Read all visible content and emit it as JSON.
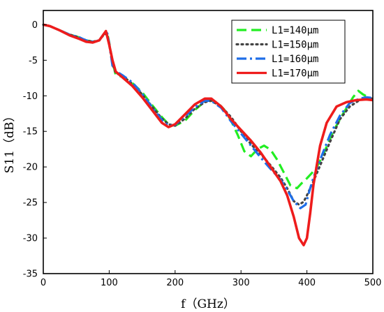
{
  "chart_data": {
    "type": "line",
    "xlabel": "f（GHz）",
    "ylabel": "S11（dB）",
    "xlim": [
      0,
      500
    ],
    "ylim": [
      -35,
      2
    ],
    "xticks": [
      0,
      100,
      200,
      300,
      400,
      500
    ],
    "yticks": [
      0,
      -5,
      -10,
      -15,
      -20,
      -25,
      -30,
      -35
    ],
    "grid": false,
    "legend_position": "top-right",
    "series": [
      {
        "name": "L1=140μm",
        "color": "#22ee22",
        "style": "dashed",
        "x": [
          0,
          10,
          25,
          40,
          55,
          65,
          75,
          85,
          92,
          97,
          100,
          105,
          110,
          120,
          135,
          150,
          165,
          180,
          190,
          200,
          215,
          230,
          245,
          255,
          265,
          275,
          285,
          295,
          305,
          315,
          325,
          335,
          345,
          355,
          365,
          375,
          385,
          392,
          400,
          408,
          415,
          425,
          440,
          455,
          470,
          478,
          485,
          495,
          500
        ],
        "y": [
          0,
          -0.2,
          -0.8,
          -1.4,
          -1.8,
          -2.2,
          -2.4,
          -2.2,
          -1.3,
          -1.2,
          -2.5,
          -5.2,
          -7.1,
          -7.3,
          -8.2,
          -9.5,
          -11.3,
          -13.0,
          -14.0,
          -14.2,
          -13.5,
          -12.0,
          -10.8,
          -10.6,
          -11.0,
          -12.0,
          -13.5,
          -15.5,
          -17.8,
          -18.5,
          -17.5,
          -17.0,
          -17.6,
          -19.0,
          -20.8,
          -22.6,
          -23.0,
          -22.3,
          -21.6,
          -20.8,
          -20.0,
          -18.2,
          -15.0,
          -12.5,
          -10.2,
          -9.3,
          -9.8,
          -10.3,
          -10.5
        ]
      },
      {
        "name": "L1=150μm",
        "color": "#444444",
        "style": "dotted",
        "x": [
          0,
          10,
          25,
          40,
          55,
          65,
          75,
          85,
          92,
          97,
          100,
          105,
          110,
          120,
          135,
          150,
          165,
          180,
          190,
          200,
          215,
          230,
          245,
          255,
          270,
          285,
          300,
          315,
          330,
          345,
          360,
          370,
          380,
          388,
          395,
          400,
          405,
          410,
          420,
          435,
          450,
          465,
          480,
          490,
          500
        ],
        "y": [
          0,
          -0.2,
          -0.8,
          -1.4,
          -1.8,
          -2.2,
          -2.4,
          -2.2,
          -1.4,
          -1.3,
          -2.8,
          -5.5,
          -6.8,
          -7.2,
          -8.3,
          -9.8,
          -11.5,
          -13.2,
          -14.0,
          -14.2,
          -13.2,
          -11.8,
          -10.9,
          -10.7,
          -11.5,
          -13.0,
          -15.0,
          -16.8,
          -18.2,
          -19.8,
          -21.5,
          -23.0,
          -24.8,
          -25.3,
          -24.9,
          -24.0,
          -23.0,
          -22.0,
          -19.8,
          -16.5,
          -13.3,
          -11.5,
          -10.6,
          -10.3,
          -10.4
        ]
      },
      {
        "name": "L1=160μm",
        "color": "#1f6ee8",
        "style": "dashdot",
        "x": [
          0,
          10,
          25,
          40,
          55,
          65,
          75,
          85,
          92,
          97,
          100,
          105,
          110,
          120,
          135,
          150,
          165,
          180,
          190,
          200,
          215,
          230,
          245,
          255,
          270,
          285,
          300,
          315,
          330,
          345,
          360,
          370,
          380,
          390,
          398,
          405,
          410,
          420,
          435,
          450,
          465,
          480,
          490,
          500
        ],
        "y": [
          0,
          -0.2,
          -0.8,
          -1.4,
          -1.8,
          -2.2,
          -2.4,
          -2.2,
          -1.3,
          -1.2,
          -2.6,
          -5.8,
          -6.5,
          -7.1,
          -8.1,
          -9.7,
          -11.6,
          -13.4,
          -14.2,
          -14.1,
          -12.9,
          -11.6,
          -10.7,
          -10.7,
          -11.7,
          -13.6,
          -15.3,
          -17.0,
          -18.7,
          -20.3,
          -21.8,
          -23.2,
          -24.8,
          -25.8,
          -25.3,
          -23.0,
          -21.5,
          -19.0,
          -15.5,
          -12.8,
          -11.0,
          -10.4,
          -10.2,
          -10.3
        ]
      },
      {
        "name": "L1=170μm",
        "color": "#ee1c1c",
        "style": "solid",
        "x": [
          0,
          10,
          25,
          40,
          55,
          65,
          75,
          85,
          92,
          95,
          100,
          105,
          110,
          120,
          135,
          150,
          165,
          180,
          190,
          200,
          215,
          230,
          245,
          255,
          270,
          285,
          300,
          315,
          330,
          345,
          360,
          370,
          380,
          388,
          395,
          400,
          405,
          410,
          420,
          430,
          445,
          460,
          475,
          490,
          500
        ],
        "y": [
          0,
          -0.2,
          -0.8,
          -1.5,
          -2.0,
          -2.4,
          -2.5,
          -2.2,
          -1.3,
          -0.9,
          -2.8,
          -5.0,
          -6.6,
          -7.4,
          -8.6,
          -10.2,
          -12.0,
          -13.8,
          -14.4,
          -14.0,
          -12.6,
          -11.2,
          -10.4,
          -10.4,
          -11.5,
          -13.3,
          -14.8,
          -16.3,
          -18.0,
          -20.0,
          -22.0,
          -24.0,
          -27.0,
          -30.0,
          -31.0,
          -30.0,
          -26.5,
          -22.5,
          -17.0,
          -13.8,
          -11.5,
          -10.9,
          -10.6,
          -10.5,
          -10.6
        ]
      }
    ]
  }
}
